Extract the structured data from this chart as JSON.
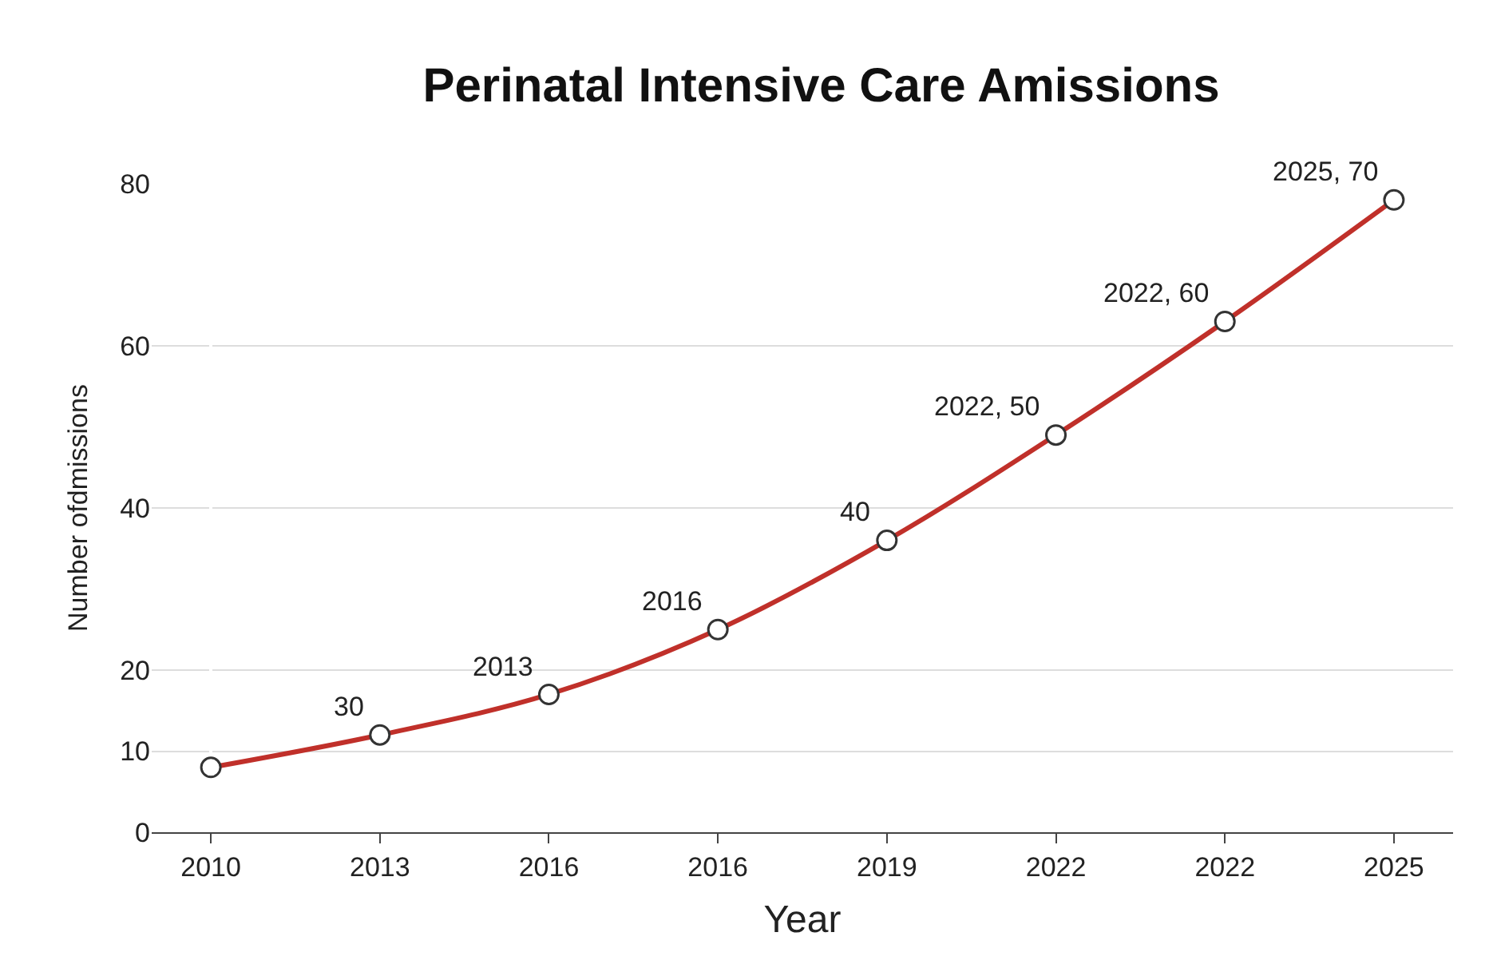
{
  "chart_data": {
    "type": "line",
    "title": "Perinatal Intensive Care Amissions",
    "xlabel": "Year",
    "ylabel": "Number ofdmissions",
    "categories": [
      "2010",
      "2013",
      "2016",
      "2016",
      "2019",
      "2022",
      "2022",
      "2025"
    ],
    "series": [
      {
        "color": "#c0302a",
        "values": [
          8,
          12,
          17,
          25,
          36,
          49,
          63,
          78
        ]
      }
    ],
    "annotations": [
      {
        "text": "30",
        "x": "2013",
        "y": 12
      },
      {
        "text": "2013",
        "x": "2016",
        "y": 17
      },
      "2016",
      {
        "text": "40",
        "x": "2019",
        "y": 36
      },
      {
        "text": "2022, 50",
        "x": "2022",
        "y": 49
      },
      "2022, 60",
      {
        "text": "2025, 70",
        "x": "2025",
        "y": 78
      }
    ],
    "ylim": [
      0,
      80
    ],
    "yticks": [
      0,
      10,
      20,
      40,
      60,
      80
    ],
    "grid": "y",
    "marker": "circle",
    "line_style": "solid"
  }
}
